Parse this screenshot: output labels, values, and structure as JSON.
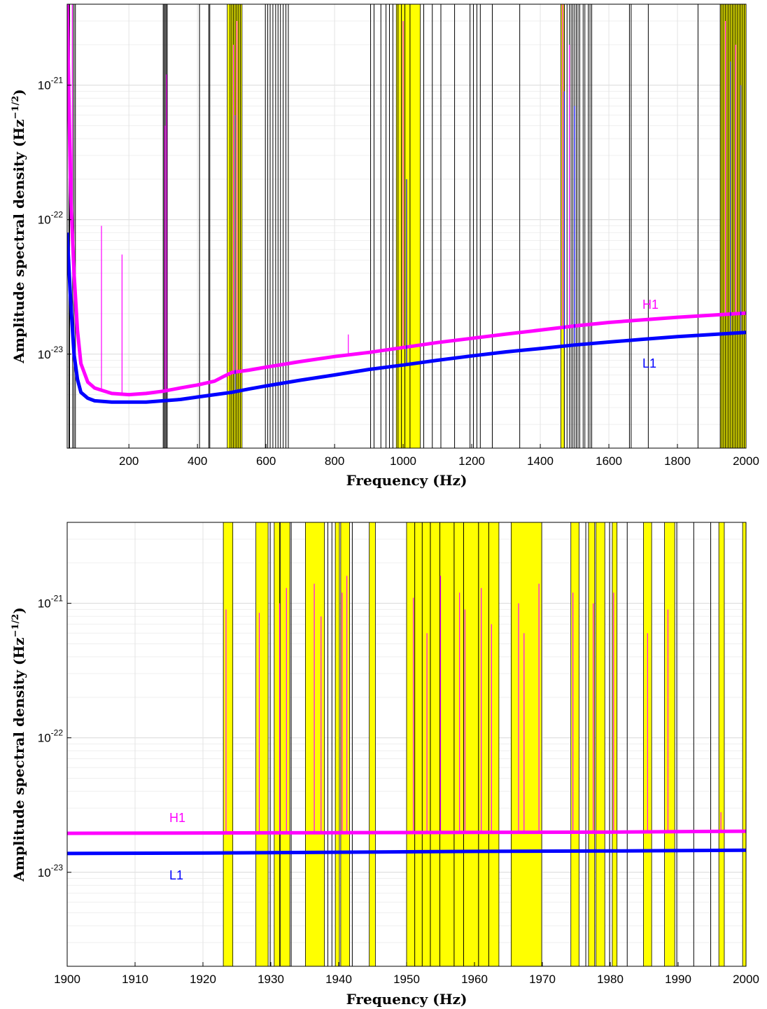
{
  "chart_data": [
    {
      "type": "line",
      "title": "",
      "xlabel": "Frequency (Hz)",
      "ylabel": "Amplitude spectral density (Hz",
      "ylabel_exponent": "−1/2",
      "ylabel_close": ")",
      "xlim": [
        20,
        2000
      ],
      "ylim": [
        2e-24,
        4e-21
      ],
      "yscale": "log",
      "grid": true,
      "xticks": [
        200,
        400,
        600,
        800,
        1000,
        1200,
        1400,
        1600,
        1800,
        2000
      ],
      "xtick_labels": [
        "200",
        "400",
        "600",
        "800",
        "1000",
        "1200",
        "1400",
        "1600",
        "1800",
        "2000"
      ],
      "yticks": [
        1e-23,
        1e-22,
        1e-21
      ],
      "ytick_labels": [
        {
          "base": "10",
          "exp": "-23"
        },
        {
          "base": "10",
          "exp": "-22"
        },
        {
          "base": "10",
          "exp": "-21"
        }
      ],
      "series": [
        {
          "name": "H1",
          "color": "#ff00ff",
          "x": [
            20,
            30,
            40,
            50,
            60,
            80,
            100,
            150,
            200,
            250,
            300,
            350,
            400,
            450,
            480,
            500,
            550,
            600,
            700,
            800,
            900,
            1000,
            1100,
            1200,
            1300,
            1400,
            1500,
            1600,
            1700,
            1800,
            1900,
            2000
          ],
          "y": [
            4e-21,
            1.6e-22,
            4e-23,
            1.5e-23,
            8.5e-24,
            6.2e-24,
            5.6e-24,
            5.1e-24,
            5e-24,
            5.1e-24,
            5.3e-24,
            5.6e-24,
            5.9e-24,
            6.3e-24,
            6.9e-24,
            7.3e-24,
            7.6e-24,
            8e-24,
            8.8e-24,
            9.6e-24,
            1.03e-23,
            1.12e-23,
            1.22e-23,
            1.31e-23,
            1.41e-23,
            1.51e-23,
            1.62e-23,
            1.72e-23,
            1.8e-23,
            1.88e-23,
            1.95e-23,
            2.02e-23
          ]
        },
        {
          "name": "L1",
          "color": "#0000ff",
          "x": [
            20,
            30,
            40,
            50,
            60,
            80,
            100,
            150,
            200,
            250,
            300,
            350,
            400,
            450,
            500,
            550,
            600,
            700,
            800,
            900,
            1000,
            1100,
            1200,
            1300,
            1400,
            1500,
            1600,
            1700,
            1800,
            1900,
            2000
          ],
          "y": [
            8e-23,
            2.5e-23,
            1e-23,
            6.5e-24,
            5.2e-24,
            4.7e-24,
            4.5e-24,
            4.4e-24,
            4.4e-24,
            4.4e-24,
            4.5e-24,
            4.6e-24,
            4.8e-24,
            5e-24,
            5.2e-24,
            5.5e-24,
            5.8e-24,
            6.4e-24,
            7e-24,
            7.7e-24,
            8.3e-24,
            9e-24,
            9.7e-24,
            1.04e-23,
            1.1e-23,
            1.17e-23,
            1.23e-23,
            1.29e-23,
            1.35e-23,
            1.4e-23,
            1.45e-23
          ]
        }
      ],
      "spikes": [
        {
          "series": "H1",
          "x": 35,
          "y": 4e-21
        },
        {
          "series": "H1",
          "x": 120,
          "y": 9e-23
        },
        {
          "series": "H1",
          "x": 180,
          "y": 5.5e-23
        },
        {
          "series": "H1",
          "x": 305,
          "y": 5e-22
        },
        {
          "series": "H1",
          "x": 310,
          "y": 1.2e-21
        },
        {
          "series": "H1",
          "x": 505,
          "y": 2e-21
        },
        {
          "series": "H1",
          "x": 515,
          "y": 3e-21
        },
        {
          "series": "L1",
          "x": 510,
          "y": 6e-22
        },
        {
          "series": "H1",
          "x": 840,
          "y": 1.4e-23
        },
        {
          "series": "H1",
          "x": 1000,
          "y": 3e-21
        },
        {
          "series": "L1",
          "x": 1010,
          "y": 2e-22
        },
        {
          "series": "H1",
          "x": 1465,
          "y": 4e-21
        },
        {
          "series": "L1",
          "x": 1470,
          "y": 9e-22
        },
        {
          "series": "H1",
          "x": 1485,
          "y": 2e-21
        },
        {
          "series": "L1",
          "x": 1500,
          "y": 7e-22
        },
        {
          "series": "H1",
          "x": 1940,
          "y": 3e-21
        },
        {
          "series": "L1",
          "x": 1955,
          "y": 1.5e-21
        },
        {
          "series": "H1",
          "x": 1970,
          "y": 2e-21
        },
        {
          "series": "L1",
          "x": 1985,
          "y": 1e-21
        }
      ],
      "shaded_bands": [
        [
          487,
          530
        ],
        [
          980,
          1050
        ],
        [
          1460,
          1470
        ],
        [
          1925,
          2000
        ]
      ],
      "vertical_lines": [
        25,
        27,
        36,
        40,
        44,
        300,
        303,
        306,
        309,
        312,
        406,
        433,
        436,
        495,
        500,
        505,
        510,
        515,
        520,
        525,
        598,
        605,
        612,
        620,
        628,
        635,
        642,
        650,
        658,
        665,
        905,
        915,
        935,
        950,
        960,
        970,
        985,
        995,
        1005,
        1020,
        1060,
        1085,
        1110,
        1150,
        1195,
        1205,
        1215,
        1225,
        1260,
        1340,
        1470,
        1478,
        1485,
        1490,
        1495,
        1500,
        1505,
        1510,
        1515,
        1525,
        1530,
        1540,
        1545,
        1550,
        1660,
        1665,
        1715,
        1860,
        1925,
        1930,
        1935,
        1940,
        1945,
        1950,
        1955,
        1960,
        1965,
        1970,
        1975,
        1980,
        1985,
        1990,
        1995
      ]
    },
    {
      "type": "line",
      "title": "",
      "xlabel": "Frequency (Hz)",
      "ylabel": "Amplitude spectral density (Hz",
      "ylabel_exponent": "−1/2",
      "ylabel_close": ")",
      "xlim": [
        1900,
        2000
      ],
      "ylim": [
        2e-24,
        4e-21
      ],
      "yscale": "log",
      "grid": true,
      "xticks": [
        1900,
        1910,
        1920,
        1930,
        1940,
        1950,
        1960,
        1970,
        1980,
        1990,
        2000
      ],
      "xtick_labels": [
        "1900",
        "1910",
        "1920",
        "1930",
        "1940",
        "1950",
        "1960",
        "1970",
        "1980",
        "1990",
        "2000"
      ],
      "yticks": [
        1e-23,
        1e-22,
        1e-21
      ],
      "ytick_labels": [
        {
          "base": "10",
          "exp": "-23"
        },
        {
          "base": "10",
          "exp": "-22"
        },
        {
          "base": "10",
          "exp": "-21"
        }
      ],
      "series": [
        {
          "name": "H1",
          "color": "#ff00ff",
          "x": [
            1900,
            1920,
            1940,
            1960,
            1980,
            2000
          ],
          "y": [
            1.95e-23,
            1.96e-23,
            1.97e-23,
            1.98e-23,
            1.99e-23,
            2.02e-23
          ]
        },
        {
          "name": "L1",
          "color": "#0000ff",
          "x": [
            1900,
            1920,
            1940,
            1960,
            1980,
            2000
          ],
          "y": [
            1.38e-23,
            1.39e-23,
            1.41e-23,
            1.43e-23,
            1.44e-23,
            1.46e-23
          ]
        }
      ],
      "spikes": [
        {
          "series": "H1",
          "x": 1923.4,
          "y": 9e-22
        },
        {
          "series": "H1",
          "x": 1928.3,
          "y": 8.5e-22
        },
        {
          "series": "H1",
          "x": 1931.3,
          "y": 1e-21
        },
        {
          "series": "H1",
          "x": 1932.3,
          "y": 1.3e-21
        },
        {
          "series": "H1",
          "x": 1936.4,
          "y": 1.4e-21
        },
        {
          "series": "H1",
          "x": 1937.4,
          "y": 8e-22
        },
        {
          "series": "H1",
          "x": 1940.5,
          "y": 1.2e-21
        },
        {
          "series": "H1",
          "x": 1941.2,
          "y": 1.6e-21
        },
        {
          "series": "H1",
          "x": 1951.0,
          "y": 1.1e-21
        },
        {
          "series": "H1",
          "x": 1953.0,
          "y": 6e-22
        },
        {
          "series": "H1",
          "x": 1955.0,
          "y": 1.6e-21
        },
        {
          "series": "H1",
          "x": 1957.8,
          "y": 1.2e-21
        },
        {
          "series": "H1",
          "x": 1958.6,
          "y": 9e-22
        },
        {
          "series": "H1",
          "x": 1961.0,
          "y": 1.3e-21
        },
        {
          "series": "H1",
          "x": 1962.5,
          "y": 7e-22
        },
        {
          "series": "H1",
          "x": 1966.5,
          "y": 1e-21
        },
        {
          "series": "H1",
          "x": 1967.3,
          "y": 6e-22
        },
        {
          "series": "H1",
          "x": 1969.5,
          "y": 1.4e-21
        },
        {
          "series": "H1",
          "x": 1974.5,
          "y": 1.2e-21
        },
        {
          "series": "H1",
          "x": 1977.5,
          "y": 1e-21
        },
        {
          "series": "H1",
          "x": 1980.5,
          "y": 1.2e-21
        },
        {
          "series": "H1",
          "x": 1985.5,
          "y": 6e-22
        },
        {
          "series": "H1",
          "x": 1988.5,
          "y": 9e-22
        },
        {
          "series": "H1",
          "x": 1996.3,
          "y": 2.8e-23
        },
        {
          "series": "H1",
          "x": 2000,
          "y": 4e-23
        }
      ],
      "shaded_bands": [
        [
          1923.0,
          1924.4
        ],
        [
          1927.8,
          1929.6
        ],
        [
          1930.5,
          1931.3
        ],
        [
          1931.4,
          1932.8
        ],
        [
          1935.1,
          1937.9
        ],
        [
          1939.5,
          1940.1
        ],
        [
          1940.3,
          1941.6
        ],
        [
          1944.5,
          1945.4
        ],
        [
          1950.0,
          1963.6
        ],
        [
          1965.4,
          1969.9
        ],
        [
          1974.2,
          1975.4
        ],
        [
          1976.8,
          1977.7
        ],
        [
          1977.9,
          1979.2
        ],
        [
          1980.3,
          1981.0
        ],
        [
          1984.9,
          1986.1
        ],
        [
          1988.0,
          1989.5
        ],
        [
          1996.0,
          1996.8
        ],
        [
          1999.5,
          2000.0
        ]
      ],
      "vertical_lines": [
        1929.9,
        1933.0,
        1938.4,
        1939.0,
        1942.0,
        1951.2,
        1952.3,
        1953.5,
        1954.9,
        1957.0,
        1958.4,
        1960.6,
        1962.1,
        1976.4,
        1979.9,
        1982.5,
        1989.8,
        1992.3,
        1994.8
      ]
    }
  ]
}
